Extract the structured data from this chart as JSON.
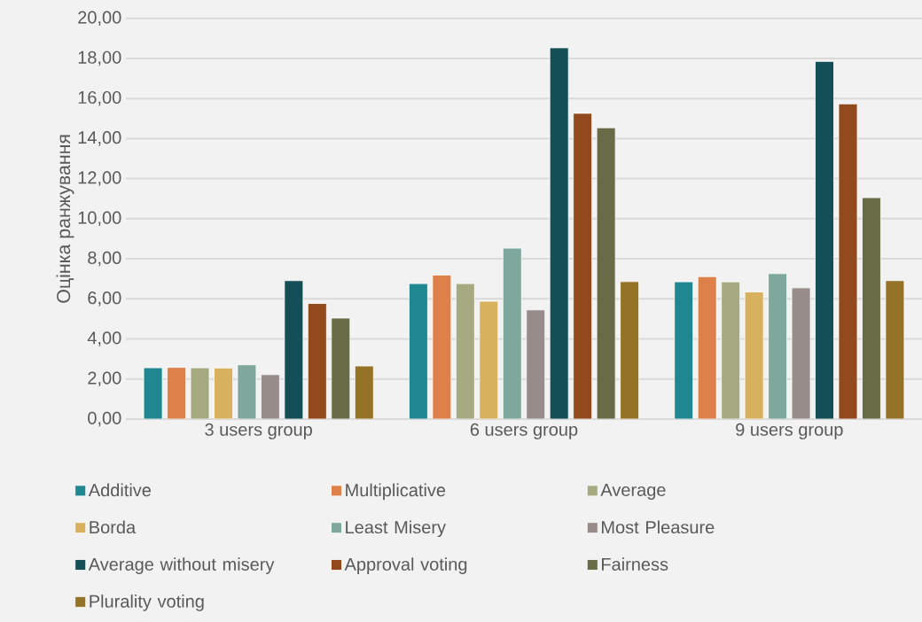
{
  "chart_data": {
    "type": "bar",
    "ylabel": "Оцінка ранжування",
    "categories": [
      "3 users group",
      "6 users group",
      "9 users group"
    ],
    "series": [
      {
        "name": "Additive",
        "color": "#1f8790",
        "values": [
          2.56,
          6.76,
          6.85
        ]
      },
      {
        "name": "Multiplicative",
        "color": "#dd804a",
        "values": [
          2.58,
          7.19,
          7.11
        ]
      },
      {
        "name": "Average",
        "color": "#a5aa80",
        "values": [
          2.56,
          6.76,
          6.85
        ]
      },
      {
        "name": "Borda",
        "color": "#d8b15e",
        "values": [
          2.55,
          5.88,
          6.35
        ]
      },
      {
        "name": "Least Misery",
        "color": "#7fa89d",
        "values": [
          2.71,
          8.53,
          7.26
        ]
      },
      {
        "name": "Most Pleasure",
        "color": "#978c8a",
        "values": [
          2.22,
          5.45,
          6.55
        ]
      },
      {
        "name": "Average without misery",
        "color": "#144f57",
        "values": [
          6.91,
          18.53,
          17.85
        ]
      },
      {
        "name": "Approval voting",
        "color": "#924a1c",
        "values": [
          5.77,
          15.26,
          15.73
        ]
      },
      {
        "name": "Fairness",
        "color": "#676c47",
        "values": [
          5.04,
          14.54,
          11.05
        ]
      },
      {
        "name": "Plurality voting",
        "color": "#957326",
        "values": [
          2.65,
          6.86,
          6.91
        ]
      }
    ],
    "ylim": [
      0,
      20
    ],
    "yticks": [
      {
        "value": 0,
        "label": "0,00"
      },
      {
        "value": 2,
        "label": "2,00"
      },
      {
        "value": 4,
        "label": "4,00"
      },
      {
        "value": 6,
        "label": "6,00"
      },
      {
        "value": 8,
        "label": "8,00"
      },
      {
        "value": 10,
        "label": "10,00"
      },
      {
        "value": 12,
        "label": "12,00"
      },
      {
        "value": 14,
        "label": "14,00"
      },
      {
        "value": 16,
        "label": "16,00"
      },
      {
        "value": 18,
        "label": "18,00"
      },
      {
        "value": 20,
        "label": "20,00"
      }
    ],
    "grid": "y",
    "legend": "bottom"
  }
}
